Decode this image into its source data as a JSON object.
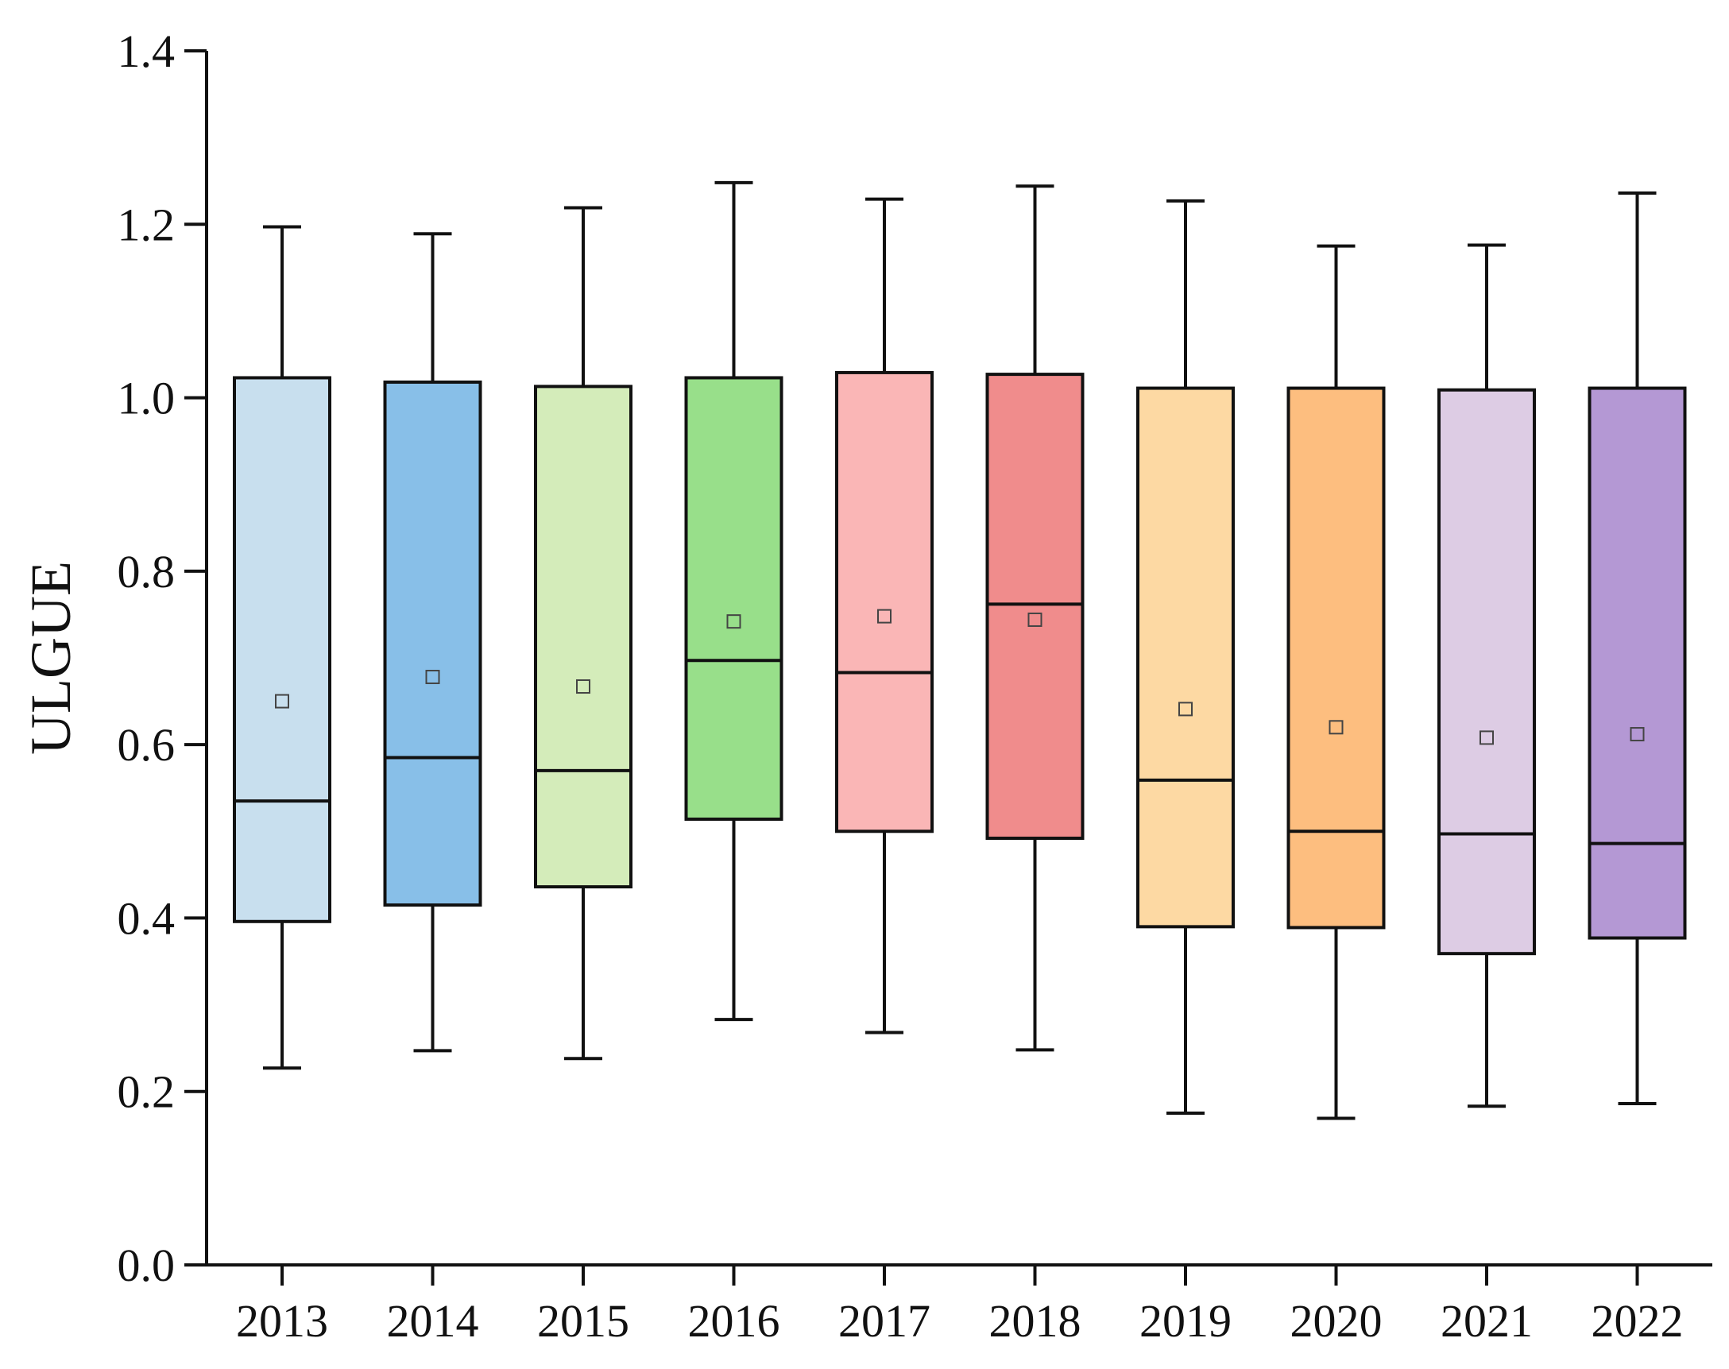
{
  "chart_data": {
    "type": "box",
    "title": "",
    "xlabel": "",
    "ylabel": "ULGUE",
    "ylim": [
      0.0,
      1.4
    ],
    "yticks": [
      "0.0",
      "0.2",
      "0.4",
      "0.6",
      "0.8",
      "1.0",
      "1.2",
      "1.4"
    ],
    "grid": false,
    "legend": "none",
    "categories": [
      "2013",
      "2014",
      "2015",
      "2016",
      "2017",
      "2018",
      "2019",
      "2020",
      "2021",
      "2022"
    ],
    "boxes": [
      {
        "category": "2013",
        "min": 0.227,
        "q1": 0.396,
        "median": 0.535,
        "q3": 1.023,
        "max": 1.197,
        "mean": 0.65,
        "color": "#C8DFEE"
      },
      {
        "category": "2014",
        "min": 0.247,
        "q1": 0.415,
        "median": 0.585,
        "q3": 1.018,
        "max": 1.189,
        "mean": 0.678,
        "color": "#88BFE8"
      },
      {
        "category": "2015",
        "min": 0.238,
        "q1": 0.436,
        "median": 0.57,
        "q3": 1.013,
        "max": 1.219,
        "mean": 0.667,
        "color": "#D4ECBA"
      },
      {
        "category": "2016",
        "min": 0.283,
        "q1": 0.514,
        "median": 0.697,
        "q3": 1.023,
        "max": 1.248,
        "mean": 0.742,
        "color": "#98DF8A"
      },
      {
        "category": "2017",
        "min": 0.268,
        "q1": 0.5,
        "median": 0.683,
        "q3": 1.029,
        "max": 1.229,
        "mean": 0.748,
        "color": "#FAB6B6"
      },
      {
        "category": "2018",
        "min": 0.248,
        "q1": 0.492,
        "median": 0.762,
        "q3": 1.027,
        "max": 1.244,
        "mean": 0.744,
        "color": "#F08C8C"
      },
      {
        "category": "2019",
        "min": 0.175,
        "q1": 0.39,
        "median": 0.559,
        "q3": 1.011,
        "max": 1.227,
        "mean": 0.641,
        "color": "#FDD9A3"
      },
      {
        "category": "2020",
        "min": 0.169,
        "q1": 0.389,
        "median": 0.5,
        "q3": 1.011,
        "max": 1.175,
        "mean": 0.62,
        "color": "#FDBE7F"
      },
      {
        "category": "2021",
        "min": 0.183,
        "q1": 0.359,
        "median": 0.497,
        "q3": 1.009,
        "max": 1.176,
        "mean": 0.608,
        "color": "#DDCCE4"
      },
      {
        "category": "2022",
        "min": 0.186,
        "q1": 0.377,
        "median": 0.486,
        "q3": 1.011,
        "max": 1.236,
        "mean": 0.612,
        "color": "#B498D4"
      }
    ]
  }
}
